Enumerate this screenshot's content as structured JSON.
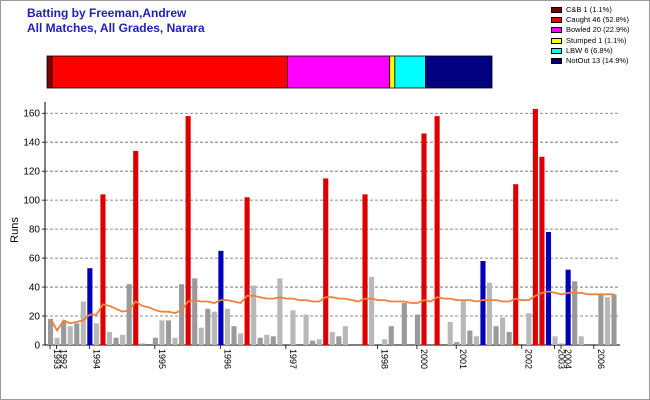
{
  "header": {
    "title_line1": "Batting by Freeman,Andrew",
    "title_line2": "All Matches, All Grades, Narara"
  },
  "legend": [
    {
      "label": "C&B 1 (1.1%)",
      "color": "#800000",
      "count": 1
    },
    {
      "label": "Caught 46 (52.8%)",
      "color": "#ff0000",
      "count": 46
    },
    {
      "label": "Bowled 20 (22.9%)",
      "color": "#ff00ff",
      "count": 20
    },
    {
      "label": "Stumped 1 (1.1%)",
      "color": "#ffff00",
      "count": 1
    },
    {
      "label": "LBW 6 (6.8%)",
      "color": "#00ffff",
      "count": 6
    },
    {
      "label": "NotOut 13 (14.9%)",
      "color": "#000080",
      "count": 13
    }
  ],
  "chart_data": {
    "type": "bar",
    "ylabel": "Runs",
    "ylim": [
      0,
      165
    ],
    "yticks": [
      0,
      20,
      40,
      60,
      80,
      100,
      120,
      140,
      160
    ],
    "grid": "dashed horizontal",
    "categories": [
      "1993",
      "1994",
      "1995",
      "1996",
      "1997",
      "1998",
      "2000",
      "2001",
      "2002",
      "2003",
      "2006"
    ],
    "x_year_labels": [
      "1993",
      "1992",
      "1994",
      "1995",
      "1996",
      "1997",
      "1998",
      "2000",
      "2001",
      "2002",
      "2003",
      "2004",
      "2006"
    ],
    "innings": [
      {
        "runs": 18,
        "out": "other"
      },
      {
        "runs": 5,
        "out": "other"
      },
      {
        "runs": 16,
        "out": "other"
      },
      {
        "runs": 13,
        "out": "other"
      },
      {
        "runs": 15,
        "out": "other"
      },
      {
        "runs": 30,
        "out": "other"
      },
      {
        "runs": 53,
        "out": "notout"
      },
      {
        "runs": 15,
        "out": "other"
      },
      {
        "runs": 104,
        "out": "caught"
      },
      {
        "runs": 9,
        "out": "other"
      },
      {
        "runs": 5,
        "out": "other"
      },
      {
        "runs": 7,
        "out": "other"
      },
      {
        "runs": 42,
        "out": "other"
      },
      {
        "runs": 134,
        "out": "caught"
      },
      {
        "runs": 1,
        "out": "other"
      },
      {
        "runs": 0,
        "out": "other"
      },
      {
        "runs": 5,
        "out": "other"
      },
      {
        "runs": 17,
        "out": "other"
      },
      {
        "runs": 17,
        "out": "other"
      },
      {
        "runs": 5,
        "out": "other"
      },
      {
        "runs": 42,
        "out": "other"
      },
      {
        "runs": 158,
        "out": "caught"
      },
      {
        "runs": 46,
        "out": "other"
      },
      {
        "runs": 12,
        "out": "other"
      },
      {
        "runs": 25,
        "out": "other"
      },
      {
        "runs": 23,
        "out": "other"
      },
      {
        "runs": 65,
        "out": "notout"
      },
      {
        "runs": 25,
        "out": "other"
      },
      {
        "runs": 13,
        "out": "other"
      },
      {
        "runs": 8,
        "out": "other"
      },
      {
        "runs": 102,
        "out": "caught"
      },
      {
        "runs": 41,
        "out": "other"
      },
      {
        "runs": 5,
        "out": "other"
      },
      {
        "runs": 7,
        "out": "other"
      },
      {
        "runs": 6,
        "out": "other"
      },
      {
        "runs": 46,
        "out": "other"
      },
      {
        "runs": 0,
        "out": "other"
      },
      {
        "runs": 24,
        "out": "other"
      },
      {
        "runs": 0,
        "out": "other"
      },
      {
        "runs": 21,
        "out": "other"
      },
      {
        "runs": 3,
        "out": "other"
      },
      {
        "runs": 4,
        "out": "other"
      },
      {
        "runs": 115,
        "out": "caught"
      },
      {
        "runs": 9,
        "out": "other"
      },
      {
        "runs": 6,
        "out": "other"
      },
      {
        "runs": 13,
        "out": "other"
      },
      {
        "runs": 0,
        "out": "other"
      },
      {
        "runs": 0,
        "out": "other"
      },
      {
        "runs": 104,
        "out": "caught"
      },
      {
        "runs": 47,
        "out": "other"
      },
      {
        "runs": 0,
        "out": "other"
      },
      {
        "runs": 4,
        "out": "other"
      },
      {
        "runs": 13,
        "out": "other"
      },
      {
        "runs": 0,
        "out": "other"
      },
      {
        "runs": 29,
        "out": "other"
      },
      {
        "runs": 0,
        "out": "other"
      },
      {
        "runs": 21,
        "out": "other"
      },
      {
        "runs": 146,
        "out": "caught"
      },
      {
        "runs": 0,
        "out": "other"
      },
      {
        "runs": 158,
        "out": "caught"
      },
      {
        "runs": 0,
        "out": "other"
      },
      {
        "runs": 16,
        "out": "other"
      },
      {
        "runs": 2,
        "out": "other"
      },
      {
        "runs": 31,
        "out": "other"
      },
      {
        "runs": 10,
        "out": "other"
      },
      {
        "runs": 6,
        "out": "other"
      },
      {
        "runs": 58,
        "out": "notout"
      },
      {
        "runs": 43,
        "out": "other"
      },
      {
        "runs": 13,
        "out": "other"
      },
      {
        "runs": 19,
        "out": "other"
      },
      {
        "runs": 9,
        "out": "other"
      },
      {
        "runs": 111,
        "out": "caught"
      },
      {
        "runs": 0,
        "out": "other"
      },
      {
        "runs": 22,
        "out": "other"
      },
      {
        "runs": 163,
        "out": "caught"
      },
      {
        "runs": 130,
        "out": "caught"
      },
      {
        "runs": 78,
        "out": "notout"
      },
      {
        "runs": 6,
        "out": "other"
      },
      {
        "runs": 1,
        "out": "other"
      },
      {
        "runs": 52,
        "out": "notout"
      },
      {
        "runs": 44,
        "out": "other"
      },
      {
        "runs": 6,
        "out": "other"
      },
      {
        "runs": 0,
        "out": "other"
      },
      {
        "runs": 0,
        "out": "other"
      },
      {
        "runs": 35,
        "out": "other"
      },
      {
        "runs": 33,
        "out": "other"
      },
      {
        "runs": 35,
        "out": "other"
      }
    ],
    "average_line": [
      18,
      10,
      17,
      15,
      16,
      17,
      21,
      21,
      28,
      27,
      25,
      23,
      24,
      30,
      27,
      26,
      24,
      23,
      23,
      22,
      24,
      30,
      31,
      30,
      30,
      29,
      31,
      31,
      30,
      29,
      34,
      34,
      33,
      32,
      32,
      33,
      32,
      32,
      31,
      31,
      30,
      30,
      33,
      33,
      32,
      32,
      31,
      30,
      32,
      32,
      31,
      31,
      30,
      30,
      30,
      29,
      29,
      31,
      30,
      33,
      32,
      32,
      31,
      31,
      31,
      30,
      31,
      31,
      31,
      30,
      30,
      32,
      31,
      31,
      34,
      36,
      37,
      36,
      35,
      36,
      36,
      36,
      35,
      35,
      35,
      35,
      35
    ],
    "colors": {
      "caught": "#dd0000",
      "notout": "#0000bb",
      "other_dark": "#9a9a9a",
      "other_light": "#b8b8b8",
      "average": "#f08040",
      "grid": "#666666"
    }
  }
}
